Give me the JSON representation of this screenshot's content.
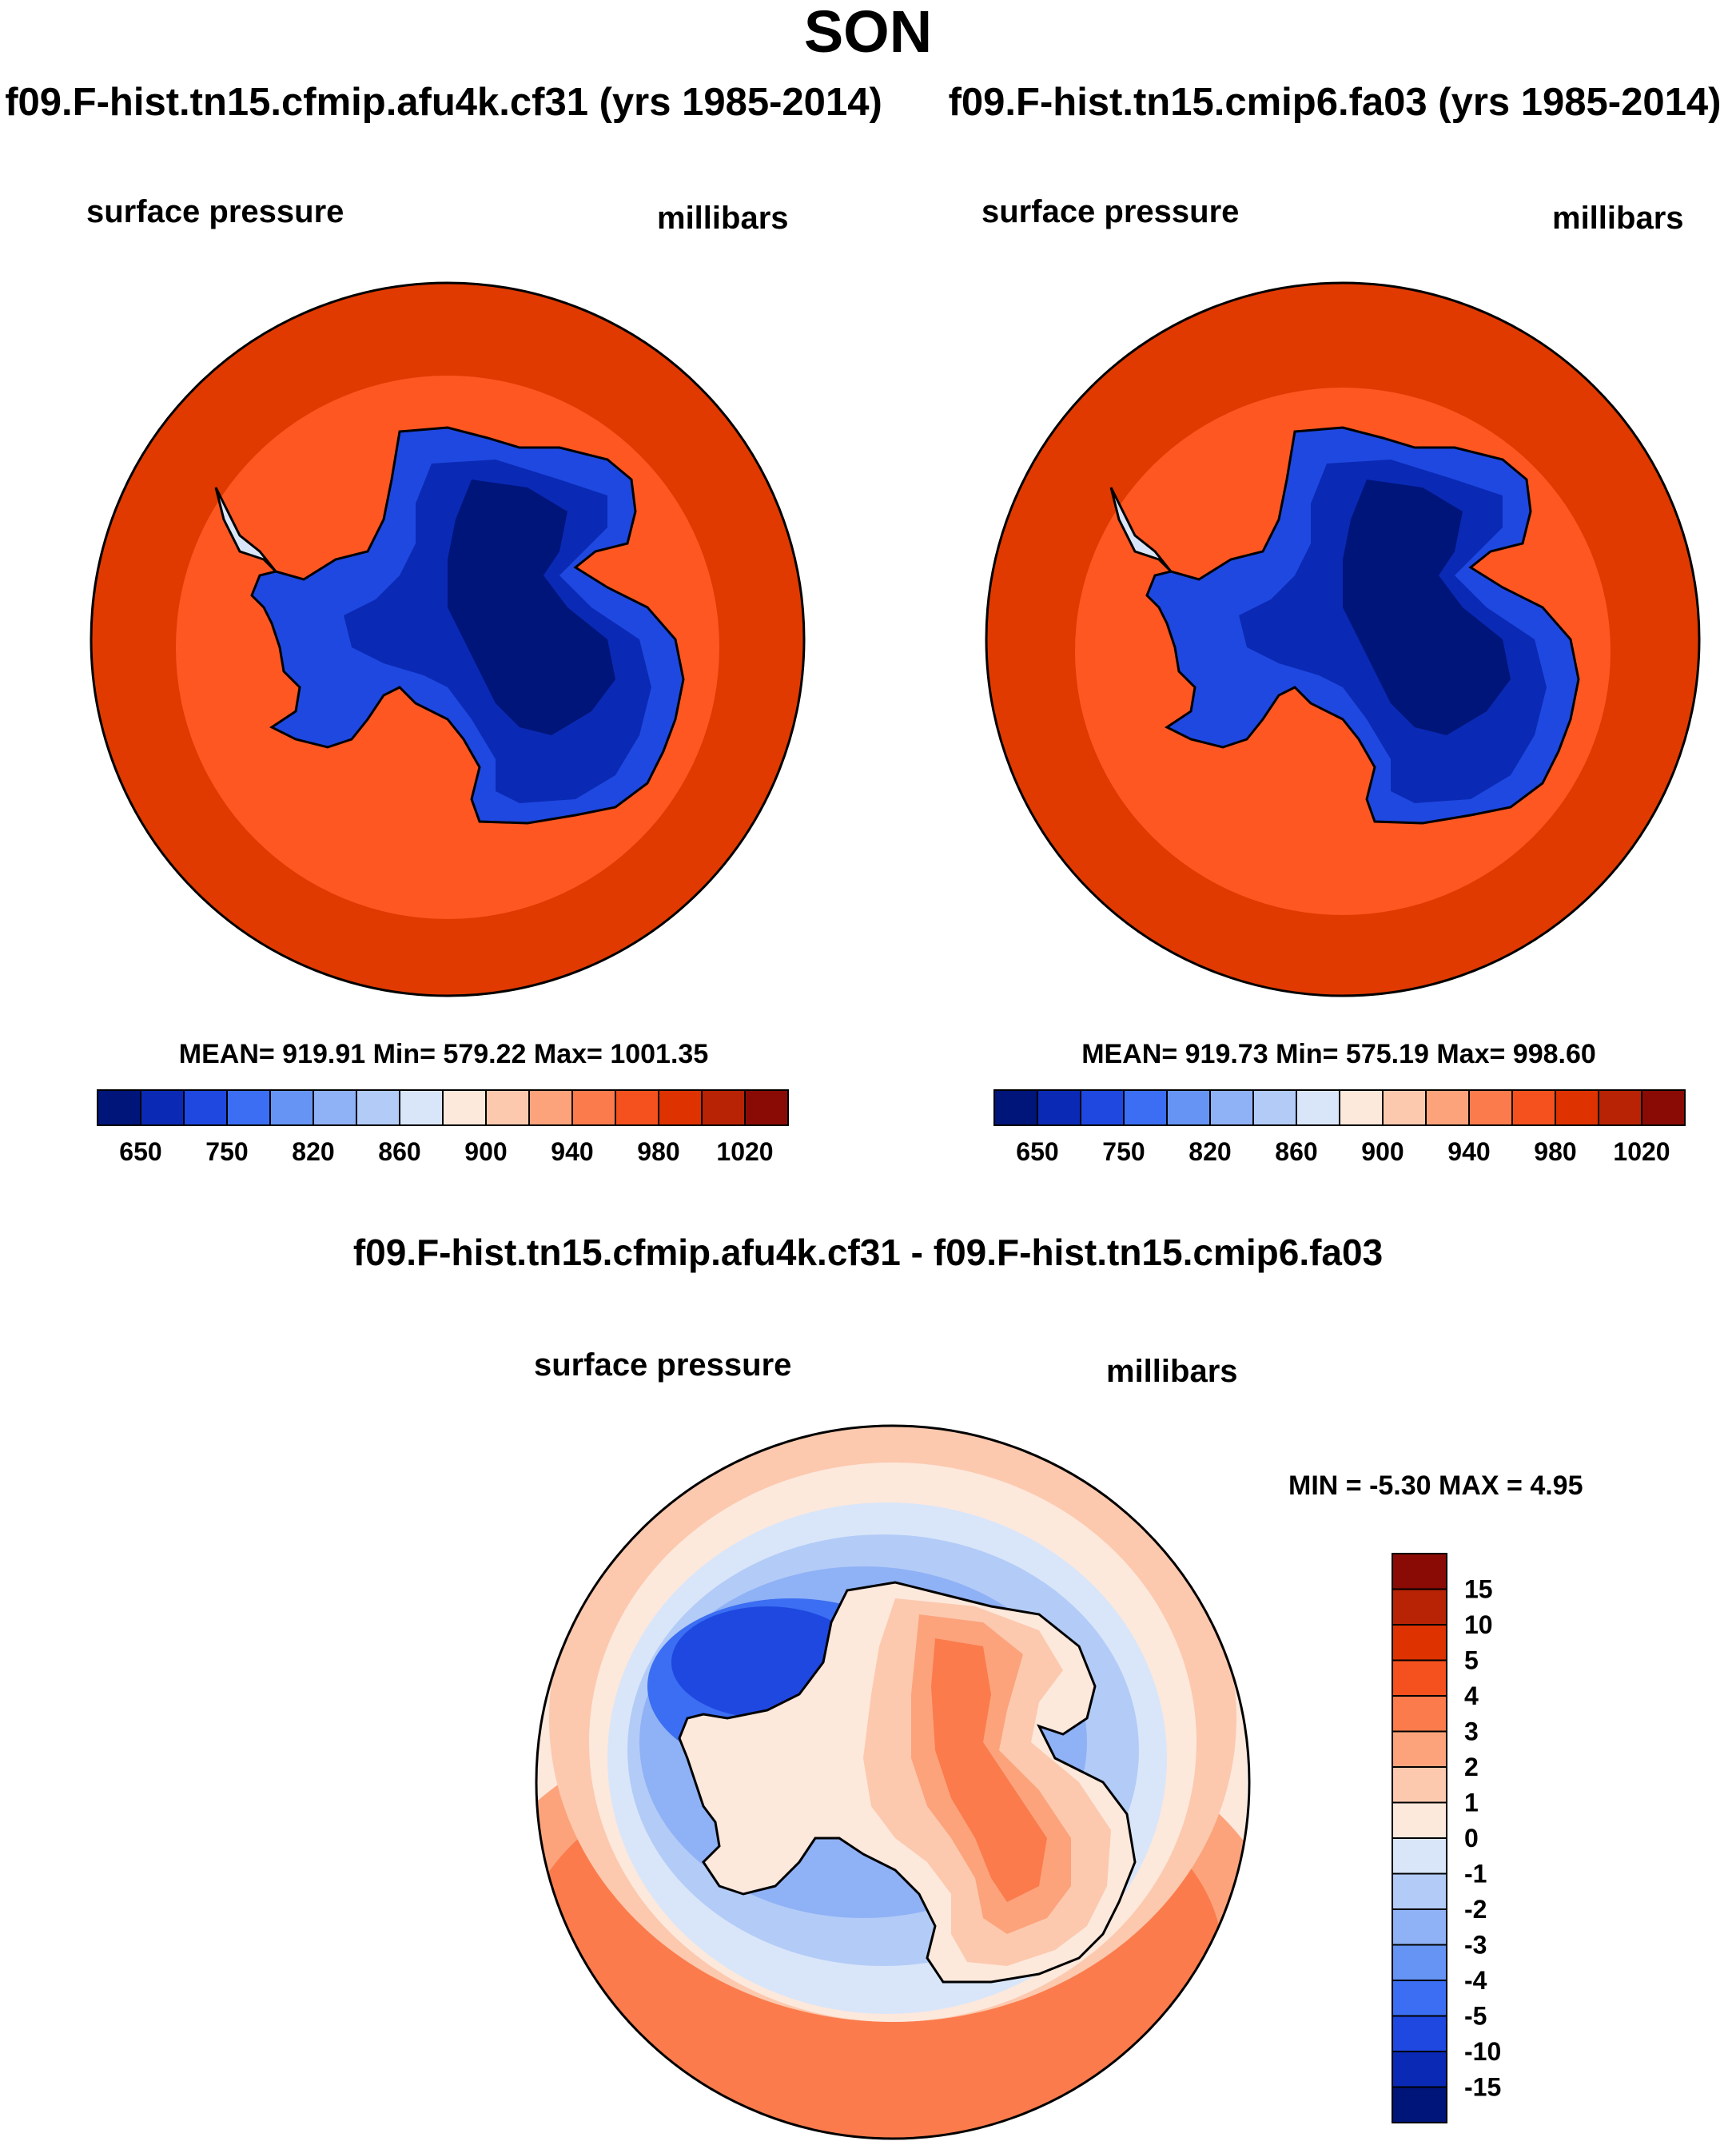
{
  "page": {
    "title": "SON",
    "colors": {
      "background": "#ffffff",
      "coast": "#000000"
    }
  },
  "panels": [
    {
      "id": "case1",
      "heading": "f09.F-hist.tn15.cfmip.afu4k.cf31 (yrs 1985-2014)",
      "left_label": "surface pressure",
      "right_label": "millibars",
      "stats": "MEAN= 919.91  Min= 579.22  Max= 1001.35",
      "ocean_ring_color": "#e03a00",
      "inner_ocean_color": "#ff5722",
      "land_color": "#1a3fcf",
      "core_color": "#00157a"
    },
    {
      "id": "case2",
      "heading": "f09.F-hist.tn15.cmip6.fa03 (yrs 1985-2014)",
      "left_label": "surface pressure",
      "right_label": "millibars",
      "stats": "MEAN= 919.73  Min= 575.19  Max= 998.60",
      "ocean_ring_color": "#e03a00",
      "inner_ocean_color": "#ff5722",
      "land_color": "#1a3fcf",
      "core_color": "#00157a"
    }
  ],
  "abs_colorbar": {
    "colors": [
      "#00157a",
      "#0a2ab5",
      "#1f48e0",
      "#3b6ef2",
      "#6694f5",
      "#8fb1f5",
      "#b3cbf7",
      "#d9e6f9",
      "#fde8dc",
      "#fcc9ae",
      "#fca37c",
      "#fb7b4c",
      "#f4511e",
      "#de3200",
      "#b72304",
      "#8a0b06"
    ],
    "labels": [
      "650",
      "750",
      "820",
      "860",
      "900",
      "940",
      "980",
      "1020"
    ]
  },
  "difference": {
    "heading": "f09.F-hist.tn15.cfmip.afu4k.cf31 - f09.F-hist.tn15.cmip6.fa03",
    "left_label": "surface pressure",
    "right_label": "millibars",
    "stats": "MIN =  -5.30 MAX =   4.95",
    "colorbar": {
      "colors": [
        "#8a0b06",
        "#b72304",
        "#de3200",
        "#f4511e",
        "#fb7b4c",
        "#fca37c",
        "#fcc9ae",
        "#fde8dc",
        "#d9e6f9",
        "#b3cbf7",
        "#8fb1f5",
        "#6694f5",
        "#3b6ef2",
        "#1f48e0",
        "#0a2ab5",
        "#00157a"
      ],
      "labels": [
        "15",
        "10",
        "5",
        "4",
        "3",
        "2",
        "1",
        "0",
        "-1",
        "-2",
        "-3",
        "-4",
        "-5",
        "-10",
        "-15"
      ]
    }
  }
}
